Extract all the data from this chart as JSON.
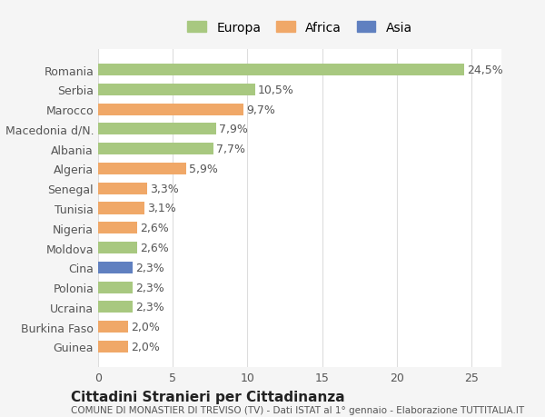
{
  "categories": [
    "Guinea",
    "Burkina Faso",
    "Ucraina",
    "Polonia",
    "Cina",
    "Moldova",
    "Nigeria",
    "Tunisia",
    "Senegal",
    "Algeria",
    "Albania",
    "Macedonia d/N.",
    "Marocco",
    "Serbia",
    "Romania"
  ],
  "values": [
    2.0,
    2.0,
    2.3,
    2.3,
    2.3,
    2.6,
    2.6,
    3.1,
    3.3,
    5.9,
    7.7,
    7.9,
    9.7,
    10.5,
    24.5
  ],
  "labels": [
    "2,0%",
    "2,0%",
    "2,3%",
    "2,3%",
    "2,3%",
    "2,6%",
    "2,6%",
    "3,1%",
    "3,3%",
    "5,9%",
    "7,7%",
    "7,9%",
    "9,7%",
    "10,5%",
    "24,5%"
  ],
  "colors": [
    "#f0a868",
    "#f0a868",
    "#a8c880",
    "#a8c880",
    "#6080c0",
    "#a8c880",
    "#f0a868",
    "#f0a868",
    "#f0a868",
    "#f0a868",
    "#a8c880",
    "#a8c880",
    "#f0a868",
    "#a8c880",
    "#a8c880"
  ],
  "legend": [
    {
      "label": "Europa",
      "color": "#a8c880"
    },
    {
      "label": "Africa",
      "color": "#f0a868"
    },
    {
      "label": "Asia",
      "color": "#6080c0"
    }
  ],
  "xlim": [
    0,
    27
  ],
  "xticks": [
    0,
    5,
    10,
    15,
    20,
    25
  ],
  "title": "Cittadini Stranieri per Cittadinanza",
  "subtitle": "COMUNE DI MONASTIER DI TREVISO (TV) - Dati ISTAT al 1° gennaio - Elaborazione TUTTITALIA.IT",
  "background_color": "#f5f5f5",
  "bar_bg_color": "#ffffff",
  "label_fontsize": 9,
  "tick_fontsize": 9
}
